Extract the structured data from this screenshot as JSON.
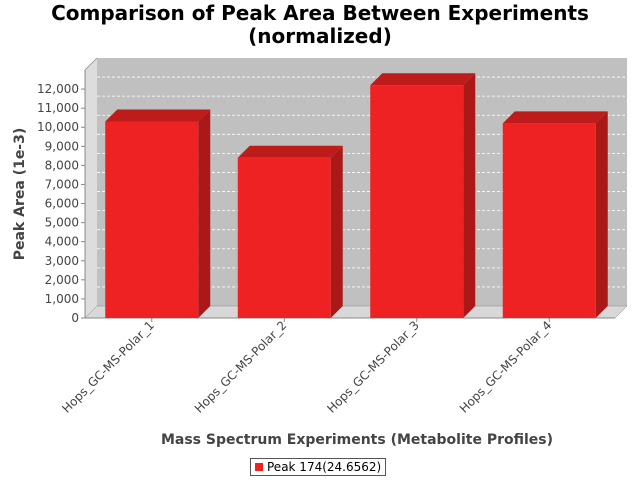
{
  "chart_data": {
    "type": "bar",
    "title_lines": [
      "Comparison of Peak Area Between Experiments",
      "(normalized)"
    ],
    "xlabel": "Mass Spectrum Experiments (Metabolite Profiles)",
    "ylabel": "Peak Area (1e-3)",
    "categories": [
      "Hops_GC-MS-Polar_1",
      "Hops_GC-MS-Polar_2",
      "Hops_GC-MS-Polar_3",
      "Hops_GC-MS-Polar_4"
    ],
    "series": [
      {
        "name": "Peak 174(24.6562)",
        "values": [
          10300,
          8400,
          12200,
          10200
        ],
        "color": "#ee2222"
      }
    ],
    "ylim": [
      0,
      13000
    ],
    "yticks": [
      0,
      1000,
      2000,
      3000,
      4000,
      5000,
      6000,
      7000,
      8000,
      9000,
      10000,
      11000,
      12000
    ],
    "ytick_labels": [
      "0",
      "1,000",
      "2,000",
      "3,000",
      "4,000",
      "5,000",
      "6,000",
      "7,000",
      "8,000",
      "9,000",
      "10,000",
      "11,000",
      "12,000"
    ],
    "grid": true,
    "legend": "bottom",
    "colors": {
      "plot_background": "#c0c0c0",
      "bar": "#ee2222"
    }
  }
}
